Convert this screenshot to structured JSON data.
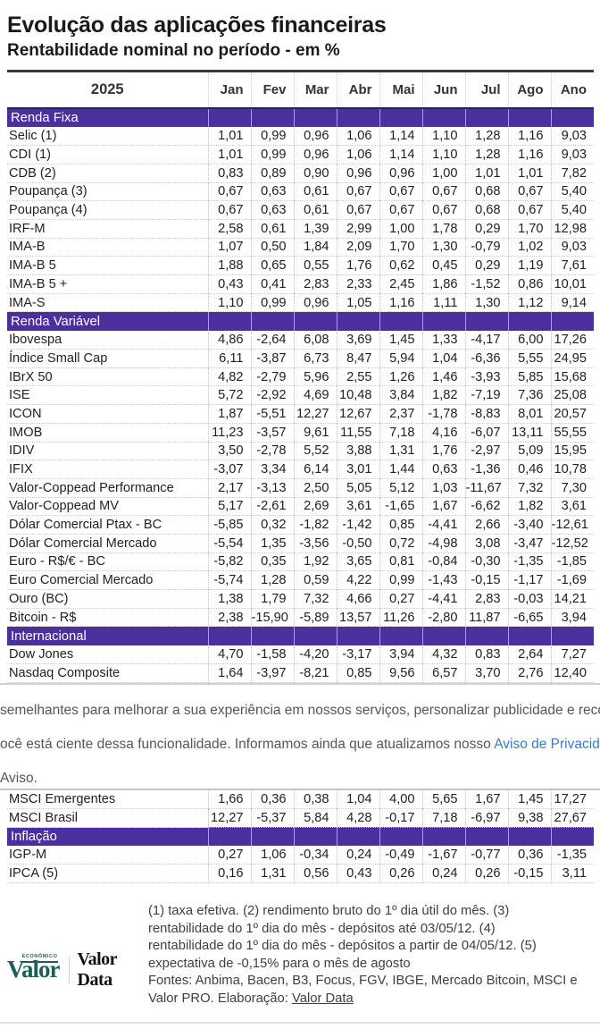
{
  "header": {
    "title": "Evolução das aplicações financeiras",
    "subtitle": "Rentabilidade nominal no período - em %"
  },
  "table": {
    "year_label": "2025",
    "columns": [
      "Jan",
      "Fev",
      "Mar",
      "Abr",
      "Mai",
      "Jun",
      "Jul",
      "Ago",
      "Ano"
    ],
    "accent_color": "#4b2e9f",
    "top_sections": [
      {
        "label": "Renda Fixa",
        "rows": [
          {
            "label": "Selic (1)",
            "values": [
              "1,01",
              "0,99",
              "0,96",
              "1,06",
              "1,14",
              "1,10",
              "1,28",
              "1,16",
              "9,03"
            ]
          },
          {
            "label": "CDI (1)",
            "values": [
              "1,01",
              "0,99",
              "0,96",
              "1,06",
              "1,14",
              "1,10",
              "1,28",
              "1,16",
              "9,03"
            ]
          },
          {
            "label": "CDB (2)",
            "values": [
              "0,83",
              "0,89",
              "0,90",
              "0,96",
              "0,96",
              "1,00",
              "1,01",
              "1,01",
              "7,82"
            ]
          },
          {
            "label": "Poupança (3)",
            "values": [
              "0,67",
              "0,63",
              "0,61",
              "0,67",
              "0,67",
              "0,67",
              "0,68",
              "0,67",
              "5,40"
            ]
          },
          {
            "label": "Poupança (4)",
            "values": [
              "0,67",
              "0,63",
              "0,61",
              "0,67",
              "0,67",
              "0,67",
              "0,68",
              "0,67",
              "5,40"
            ]
          },
          {
            "label": "IRF-M",
            "values": [
              "2,58",
              "0,61",
              "1,39",
              "2,99",
              "1,00",
              "1,78",
              "0,29",
              "1,70",
              "12,98"
            ]
          },
          {
            "label": "IMA-B",
            "values": [
              "1,07",
              "0,50",
              "1,84",
              "2,09",
              "1,70",
              "1,30",
              "-0,79",
              "1,02",
              "9,03"
            ]
          },
          {
            "label": "IMA-B 5",
            "values": [
              "1,88",
              "0,65",
              "0,55",
              "1,76",
              "0,62",
              "0,45",
              "0,29",
              "1,19",
              "7,61"
            ]
          },
          {
            "label": "IMA-B 5 +",
            "values": [
              "0,43",
              "0,41",
              "2,83",
              "2,33",
              "2,45",
              "1,86",
              "-1,52",
              "0,86",
              "10,01"
            ]
          },
          {
            "label": "IMA-S",
            "values": [
              "1,10",
              "0,99",
              "0,96",
              "1,05",
              "1,16",
              "1,11",
              "1,30",
              "1,12",
              "9,14"
            ]
          }
        ]
      },
      {
        "label": "Renda Variável",
        "rows": [
          {
            "label": "Ibovespa",
            "values": [
              "4,86",
              "-2,64",
              "6,08",
              "3,69",
              "1,45",
              "1,33",
              "-4,17",
              "6,00",
              "17,26"
            ]
          },
          {
            "label": "Índice Small Cap",
            "values": [
              "6,11",
              "-3,87",
              "6,73",
              "8,47",
              "5,94",
              "1,04",
              "-6,36",
              "5,55",
              "24,95"
            ]
          },
          {
            "label": "IBrX 50",
            "values": [
              "4,82",
              "-2,79",
              "5,96",
              "2,55",
              "1,26",
              "1,46",
              "-3,93",
              "5,85",
              "15,68"
            ]
          },
          {
            "label": "ISE",
            "values": [
              "5,72",
              "-2,92",
              "4,69",
              "10,48",
              "3,84",
              "1,82",
              "-7,19",
              "7,36",
              "25,08"
            ]
          },
          {
            "label": "ICON",
            "values": [
              "1,87",
              "-5,51",
              "12,27",
              "12,67",
              "2,37",
              "-1,78",
              "-8,83",
              "8,01",
              "20,57"
            ]
          },
          {
            "label": "IMOB",
            "values": [
              "11,23",
              "-3,57",
              "9,61",
              "11,55",
              "7,18",
              "4,16",
              "-6,07",
              "13,11",
              "55,55"
            ]
          },
          {
            "label": "IDIV",
            "values": [
              "3,50",
              "-2,78",
              "5,52",
              "3,88",
              "1,31",
              "1,76",
              "-2,97",
              "5,09",
              "15,95"
            ]
          },
          {
            "label": "IFIX",
            "values": [
              "-3,07",
              "3,34",
              "6,14",
              "3,01",
              "1,44",
              "0,63",
              "-1,36",
              "0,46",
              "10,78"
            ]
          },
          {
            "label": "Valor-Coppead Performance",
            "values": [
              "2,17",
              "-3,13",
              "2,50",
              "5,05",
              "5,12",
              "1,03",
              "-11,67",
              "7,32",
              "7,30"
            ]
          },
          {
            "label": "Valor-Coppead MV",
            "values": [
              "5,17",
              "-2,61",
              "2,69",
              "3,61",
              "-1,65",
              "1,67",
              "-6,62",
              "1,82",
              "3,61"
            ]
          },
          {
            "label": "Dólar Comercial Ptax - BC",
            "values": [
              "-5,85",
              "0,32",
              "-1,82",
              "-1,42",
              "0,85",
              "-4,41",
              "2,66",
              "-3,40",
              "-12,61"
            ]
          },
          {
            "label": "Dólar Comercial Mercado",
            "values": [
              "-5,54",
              "1,35",
              "-3,56",
              "-0,50",
              "0,72",
              "-4,98",
              "3,08",
              "-3,47",
              "-12,52"
            ]
          },
          {
            "label": "Euro - R$/€ - BC",
            "values": [
              "-5,82",
              "0,35",
              "1,92",
              "3,65",
              "0,81",
              "-0,84",
              "-0,30",
              "-1,35",
              "-1,85"
            ]
          },
          {
            "label": "Euro Comercial Mercado",
            "values": [
              "-5,74",
              "1,28",
              "0,59",
              "4,22",
              "0,99",
              "-1,43",
              "-0,15",
              "-1,17",
              "-1,69"
            ]
          },
          {
            "label": "Ouro (BC)",
            "values": [
              "1,38",
              "1,79",
              "7,32",
              "4,66",
              "0,27",
              "-4,41",
              "2,83",
              "-0,03",
              "14,21"
            ]
          },
          {
            "label": "Bitcoin - R$",
            "values": [
              "2,38",
              "-15,90",
              "-5,89",
              "13,57",
              "11,26",
              "-2,80",
              "11,87",
              "-6,65",
              "3,94"
            ]
          }
        ]
      },
      {
        "label": "Internacional",
        "rows": [
          {
            "label": "Dow Jones",
            "values": [
              "4,70",
              "-1,58",
              "-4,20",
              "-3,17",
              "3,94",
              "4,32",
              "0,83",
              "2,64",
              "7,27"
            ]
          },
          {
            "label": "Nasdaq Composite",
            "values": [
              "1,64",
              "-3,97",
              "-8,21",
              "0,85",
              "9,56",
              "6,57",
              "3,70",
              "2,76",
              "12,40"
            ]
          }
        ]
      }
    ],
    "bottom_sections": [
      {
        "label": null,
        "rows": [
          {
            "label": "MSCI Emergentes",
            "values": [
              "1,66",
              "0,36",
              "0,38",
              "1,04",
              "4,00",
              "5,65",
              "1,67",
              "1,45",
              "17,27"
            ]
          },
          {
            "label": "MSCI Brasil",
            "values": [
              "12,27",
              "-5,37",
              "5,84",
              "4,28",
              "-0,17",
              "7,18",
              "-6,97",
              "9,38",
              "27,67"
            ]
          }
        ]
      },
      {
        "label": "Inflação",
        "rows": [
          {
            "label": "IGP-M",
            "values": [
              "0,27",
              "1,06",
              "-0,34",
              "0,24",
              "-0,49",
              "-1,67",
              "-0,77",
              "0,36",
              "-1,35"
            ]
          },
          {
            "label": "IPCA (5)",
            "values": [
              "0,16",
              "1,31",
              "0,56",
              "0,43",
              "0,26",
              "0,24",
              "0,26",
              "-0,15",
              "3,11"
            ]
          }
        ]
      }
    ]
  },
  "cookie_banner": {
    "line1": "semelhantes para melhorar a sua experiência em nossos serviços, personalizar publicidade e recomendar",
    "line2_prefix": "ocê está ciente dessa funcionalidade. Informamos ainda que atualizamos nosso ",
    "line2_link": "Aviso de Privacidade.",
    "line3": "Aviso.",
    "link_color": "#3b7ac9"
  },
  "footer": {
    "logo_valor": "Valor",
    "logo_valor_small": "ECONÔMICO",
    "logo_valordata": "Valor Data",
    "notes_lines": "(1) taxa efetiva. (2) rendimento bruto do 1º dia útil do mês. (3)\nrentabilidade do 1º dia do mês - depósitos até 03/05/12. (4)\nrentabilidade do 1º dia do mês - depósitos a partir de 04/05/12. (5)\nexpectativa de -0,15% para o mês de agosto\nFontes: Anbima, Bacen, B3, Focus, FGV, IBGE, Mercado Bitcoin, MSCI e",
    "elaboracao_prefix": "Valor PRO. Elaboração: ",
    "elaboracao_link": "Valor Data"
  }
}
